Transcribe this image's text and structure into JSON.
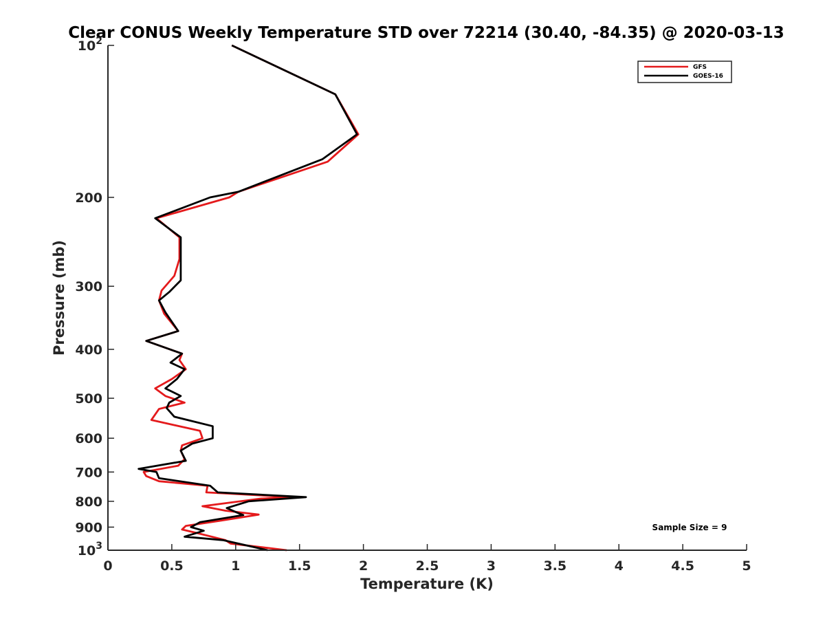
{
  "chart_data": {
    "type": "line",
    "title": "Clear CONUS Weekly Temperature STD over 72214 (30.40, -84.35) @ 2020-03-13",
    "xlabel": "Temperature (K)",
    "ylabel": "Pressure (mb)",
    "xlim": [
      0,
      5
    ],
    "ylim": [
      100,
      1000
    ],
    "yscale": "log",
    "y_reversed": true,
    "grid": false,
    "legend_position": "top-right",
    "x_ticks": [
      {
        "value": 0,
        "label": "0"
      },
      {
        "value": 0.5,
        "label": "0.5"
      },
      {
        "value": 1,
        "label": "1"
      },
      {
        "value": 1.5,
        "label": "1.5"
      },
      {
        "value": 2,
        "label": "2"
      },
      {
        "value": 2.5,
        "label": "2.5"
      },
      {
        "value": 3,
        "label": "3"
      },
      {
        "value": 3.5,
        "label": "3.5"
      },
      {
        "value": 4,
        "label": "4"
      },
      {
        "value": 4.5,
        "label": "4.5"
      },
      {
        "value": 5,
        "label": "5"
      }
    ],
    "y_ticks": [
      {
        "value": 100,
        "label": "10",
        "sup": "2"
      },
      {
        "value": 200,
        "label": "200"
      },
      {
        "value": 300,
        "label": "300"
      },
      {
        "value": 400,
        "label": "400"
      },
      {
        "value": 500,
        "label": "500"
      },
      {
        "value": 600,
        "label": "600"
      },
      {
        "value": 700,
        "label": "700"
      },
      {
        "value": 800,
        "label": "800"
      },
      {
        "value": 900,
        "label": "900"
      },
      {
        "value": 1000,
        "label": "10",
        "sup": "3"
      }
    ],
    "series": [
      {
        "name": "GFS",
        "color": "#e41a1c",
        "points": [
          [
            0.97,
            100
          ],
          [
            1.78,
            125
          ],
          [
            1.96,
            150
          ],
          [
            1.72,
            170
          ],
          [
            1.02,
            195
          ],
          [
            0.95,
            200
          ],
          [
            0.38,
            220
          ],
          [
            0.56,
            240
          ],
          [
            0.56,
            265
          ],
          [
            0.52,
            286
          ],
          [
            0.42,
            306
          ],
          [
            0.4,
            320
          ],
          [
            0.44,
            340
          ],
          [
            0.55,
            368
          ],
          [
            0.3,
            385
          ],
          [
            0.58,
            408
          ],
          [
            0.56,
            420
          ],
          [
            0.61,
            438
          ],
          [
            0.5,
            458
          ],
          [
            0.37,
            478
          ],
          [
            0.45,
            495
          ],
          [
            0.6,
            510
          ],
          [
            0.4,
            525
          ],
          [
            0.34,
            552
          ],
          [
            0.72,
            580
          ],
          [
            0.74,
            600
          ],
          [
            0.58,
            620
          ],
          [
            0.57,
            635
          ],
          [
            0.6,
            660
          ],
          [
            0.55,
            680
          ],
          [
            0.28,
            700
          ],
          [
            0.3,
            713
          ],
          [
            0.4,
            730
          ],
          [
            0.78,
            745
          ],
          [
            0.77,
            768
          ],
          [
            1.45,
            785
          ],
          [
            1.2,
            790
          ],
          [
            0.74,
            818
          ],
          [
            0.92,
            835
          ],
          [
            1.18,
            850
          ],
          [
            0.87,
            875
          ],
          [
            0.61,
            895
          ],
          [
            0.58,
            910
          ],
          [
            0.7,
            925
          ],
          [
            0.92,
            955
          ],
          [
            0.96,
            970
          ],
          [
            1.4,
            1000
          ]
        ]
      },
      {
        "name": "GOES-16",
        "color": "#000000",
        "points": [
          [
            0.97,
            100
          ],
          [
            1.78,
            125
          ],
          [
            1.95,
            150
          ],
          [
            1.68,
            168
          ],
          [
            1.02,
            195
          ],
          [
            0.8,
            200
          ],
          [
            0.37,
            220
          ],
          [
            0.57,
            240
          ],
          [
            0.57,
            265
          ],
          [
            0.57,
            292
          ],
          [
            0.48,
            308
          ],
          [
            0.4,
            320
          ],
          [
            0.45,
            338
          ],
          [
            0.55,
            368
          ],
          [
            0.3,
            385
          ],
          [
            0.58,
            408
          ],
          [
            0.49,
            425
          ],
          [
            0.6,
            438
          ],
          [
            0.54,
            458
          ],
          [
            0.45,
            478
          ],
          [
            0.57,
            495
          ],
          [
            0.48,
            510
          ],
          [
            0.46,
            523
          ],
          [
            0.52,
            544
          ],
          [
            0.82,
            568
          ],
          [
            0.82,
            600
          ],
          [
            0.66,
            615
          ],
          [
            0.57,
            635
          ],
          [
            0.61,
            665
          ],
          [
            0.24,
            690
          ],
          [
            0.38,
            700
          ],
          [
            0.4,
            720
          ],
          [
            0.8,
            745
          ],
          [
            0.86,
            768
          ],
          [
            1.55,
            785
          ],
          [
            1.1,
            800
          ],
          [
            0.93,
            825
          ],
          [
            1.0,
            840
          ],
          [
            1.06,
            852
          ],
          [
            0.72,
            880
          ],
          [
            0.65,
            900
          ],
          [
            0.75,
            915
          ],
          [
            0.6,
            940
          ],
          [
            0.9,
            955
          ],
          [
            1.25,
            1000
          ]
        ]
      }
    ],
    "legend": {
      "entries": [
        "GFS",
        "GOES-16"
      ]
    },
    "annotations": [
      {
        "text": "Sample Size = 9",
        "position": "bottom-right"
      }
    ]
  }
}
